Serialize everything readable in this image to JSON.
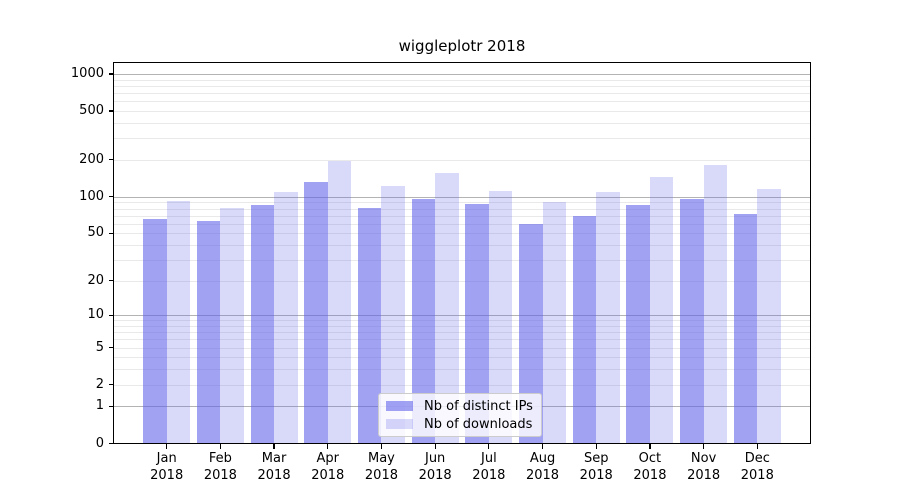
{
  "chart_data": {
    "type": "bar",
    "title": "wiggleplotr 2018",
    "xlabel": "",
    "ylabel": "",
    "yscale": "log1p",
    "ylim": [
      0,
      1253
    ],
    "grid": true,
    "legend_position": "lower center",
    "categories": [
      "Jan",
      "Feb",
      "Mar",
      "Apr",
      "May",
      "Jun",
      "Jul",
      "Aug",
      "Sep",
      "Oct",
      "Nov",
      "Dec"
    ],
    "year_label": "2018",
    "series": [
      {
        "name": "Nb of distinct IPs",
        "color": "rgba(95,95,235,0.58)",
        "values": [
          66,
          63,
          85,
          131,
          81,
          95,
          87,
          60,
          70,
          85,
          95,
          72
        ]
      },
      {
        "name": "Nb of downloads",
        "color": "rgba(95,95,235,0.24)",
        "values": [
          92,
          81,
          109,
          197,
          122,
          155,
          112,
          91,
          109,
          145,
          181,
          115
        ]
      }
    ],
    "yticks": [
      0,
      1,
      2,
      5,
      10,
      20,
      50,
      100,
      200,
      500,
      1000
    ],
    "grid_major": [
      1,
      10,
      100,
      1000
    ],
    "grid_minor": [
      2,
      3,
      4,
      5,
      6,
      7,
      8,
      9,
      20,
      30,
      40,
      50,
      60,
      70,
      80,
      90,
      200,
      300,
      400,
      500,
      600,
      700,
      800,
      900
    ],
    "colors": {
      "axis": "#000000",
      "grid_major": "#b3b3b3",
      "grid_minor": "#e9e9e9",
      "background": "#ffffff"
    }
  }
}
